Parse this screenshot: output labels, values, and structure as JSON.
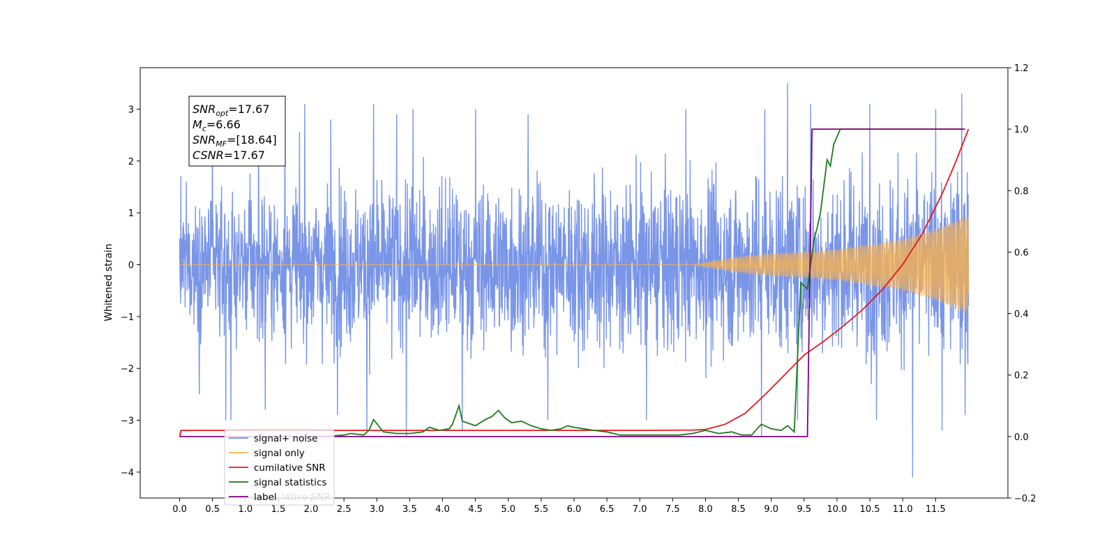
{
  "chart_data": {
    "type": "line",
    "ylabel_left": "Whitened strain",
    "xlim": [
      -0.6,
      12.6
    ],
    "ylim_left": [
      -4.5,
      3.8
    ],
    "ylim_right": [
      -0.2,
      1.2
    ],
    "x_ticks": [
      0.0,
      0.5,
      1.0,
      1.5,
      2.0,
      2.5,
      3.0,
      3.5,
      4.0,
      4.5,
      5.0,
      5.5,
      6.0,
      6.5,
      7.0,
      7.5,
      8.0,
      8.5,
      9.0,
      9.5,
      10.0,
      10.5,
      11.0,
      11.5
    ],
    "x_tick_labels": [
      "0.0",
      "0.5",
      "1.0",
      "1.5",
      "2.0",
      "2.5",
      "3.0",
      "3.5",
      "4.0",
      "4.5",
      "5.0",
      "5.5",
      "6.0",
      "6.5",
      "7.0",
      "7.5",
      "8.0",
      "8.5",
      "9.0",
      "9.5",
      "10.0",
      "10.5",
      "11.0",
      "11.5"
    ],
    "y_left_ticks": [
      -4,
      -3,
      -2,
      -1,
      0,
      1,
      2,
      3
    ],
    "y_left_tick_labels": [
      "−4",
      "−3",
      "−2",
      "−1",
      "0",
      "1",
      "2",
      "3"
    ],
    "y_right_ticks": [
      -0.2,
      0.0,
      0.2,
      0.4,
      0.6,
      0.8,
      1.0,
      1.2
    ],
    "y_right_tick_labels": [
      "−0.2",
      "0.0",
      "0.2",
      "0.4",
      "0.6",
      "0.8",
      "1.0",
      "1.2"
    ],
    "annotation": {
      "lines": [
        {
          "sym": "SNR",
          "sub": "opt",
          "value": "=17.67"
        },
        {
          "sym": "M",
          "sub": "c",
          "value": "=6.66"
        },
        {
          "sym": "SNR",
          "sub": "MF",
          "value": "=[18.64]"
        },
        {
          "sym": "CSNR",
          "sub": "",
          "value": "=17.67"
        }
      ]
    },
    "series": [
      {
        "name": "signal+ noise",
        "axis": "left",
        "color": "#6a8ae6",
        "x_range": [
          0,
          12
        ],
        "sampled": true,
        "envelope_max": [
          [
            0,
            2.0
          ],
          [
            2.0,
            2.5
          ],
          [
            6.0,
            2.6
          ],
          [
            9.0,
            2.8
          ],
          [
            12.0,
            2.9
          ]
        ],
        "peaks": [
          [
            0.1,
            1.6
          ],
          [
            0.5,
            2.9
          ],
          [
            1.2,
            2.9
          ],
          [
            1.6,
            3.0
          ],
          [
            1.9,
            3.1
          ],
          [
            2.3,
            2.8
          ],
          [
            2.95,
            3.1
          ],
          [
            3.3,
            2.9
          ],
          [
            3.55,
            3.0
          ],
          [
            4.5,
            3.0
          ],
          [
            5.3,
            2.9
          ],
          [
            7.7,
            3.0
          ],
          [
            8.9,
            3.0
          ],
          [
            9.25,
            3.5
          ],
          [
            9.6,
            3.1
          ],
          [
            10.5,
            3.1
          ],
          [
            11.5,
            3.0
          ],
          [
            11.9,
            3.3
          ]
        ],
        "troughs": [
          [
            0.3,
            -2.5
          ],
          [
            0.7,
            -3.0
          ],
          [
            0.78,
            -3.0
          ],
          [
            1.3,
            -2.8
          ],
          [
            2.4,
            -2.9
          ],
          [
            2.85,
            -3.2
          ],
          [
            3.45,
            -3.3
          ],
          [
            4.3,
            -3.2
          ],
          [
            5.6,
            -3.0
          ],
          [
            7.1,
            -3.0
          ],
          [
            8.85,
            -3.3
          ],
          [
            9.4,
            -3.0
          ],
          [
            10.6,
            -3.0
          ],
          [
            11.15,
            -4.1
          ],
          [
            11.6,
            -3.2
          ],
          [
            11.95,
            -2.9
          ]
        ]
      },
      {
        "name": "signal only",
        "axis": "left",
        "color": "#ffb347",
        "x_range": [
          0,
          12
        ],
        "sampled": true,
        "amplitude_envelope": [
          [
            0,
            0.0
          ],
          [
            7.8,
            0.0
          ],
          [
            8.5,
            0.15
          ],
          [
            9.0,
            0.22
          ],
          [
            9.5,
            0.25
          ],
          [
            10.0,
            0.3
          ],
          [
            10.5,
            0.4
          ],
          [
            11.0,
            0.5
          ],
          [
            11.5,
            0.7
          ],
          [
            12.0,
            0.95
          ]
        ]
      },
      {
        "name": "cumilative SNR",
        "axis": "right",
        "color": "#e8151a",
        "x": [
          0.0,
          0.02,
          1.0,
          3.0,
          5.0,
          7.0,
          7.8,
          8.0,
          8.3,
          8.6,
          8.9,
          9.2,
          9.5,
          9.8,
          10.1,
          10.4,
          10.7,
          11.0,
          11.3,
          11.6,
          11.8,
          12.0
        ],
        "y": [
          0.0,
          0.02,
          0.02,
          0.02,
          0.02,
          0.02,
          0.021,
          0.023,
          0.04,
          0.075,
          0.135,
          0.2,
          0.265,
          0.31,
          0.36,
          0.415,
          0.48,
          0.56,
          0.66,
          0.79,
          0.89,
          1.0
        ]
      },
      {
        "name": "signal statistics",
        "axis": "right",
        "color": "#1a7a1a",
        "x": [
          2.2,
          2.5,
          2.6,
          2.8,
          2.88,
          2.95,
          3.1,
          3.3,
          3.5,
          3.7,
          3.8,
          3.95,
          4.1,
          4.15,
          4.25,
          4.3,
          4.5,
          4.65,
          4.75,
          4.85,
          4.95,
          5.05,
          5.2,
          5.35,
          5.5,
          5.65,
          5.8,
          5.9,
          6.0,
          6.15,
          6.3,
          6.5,
          6.7,
          7.0,
          7.3,
          7.6,
          7.8,
          8.0,
          8.2,
          8.4,
          8.55,
          8.7,
          8.85,
          9.0,
          9.15,
          9.25,
          9.35,
          9.45,
          9.55,
          9.65,
          9.7,
          9.75,
          9.85,
          9.9,
          9.95,
          10.05,
          10.15,
          10.3,
          10.5,
          11.0,
          11.5,
          11.9
        ],
        "y": [
          0.0,
          0.005,
          0.01,
          0.005,
          0.02,
          0.055,
          0.015,
          0.01,
          0.01,
          0.015,
          0.03,
          0.02,
          0.025,
          0.04,
          0.1,
          0.05,
          0.035,
          0.055,
          0.065,
          0.085,
          0.06,
          0.045,
          0.05,
          0.035,
          0.025,
          0.02,
          0.025,
          0.035,
          0.03,
          0.025,
          0.02,
          0.015,
          0.005,
          0.005,
          0.005,
          0.005,
          0.01,
          0.02,
          0.01,
          0.015,
          0.005,
          0.005,
          0.04,
          0.025,
          0.02,
          0.035,
          0.015,
          0.5,
          0.48,
          0.64,
          0.68,
          0.73,
          0.9,
          0.88,
          0.95,
          1.0,
          1.0,
          1.0,
          1.0,
          1.0,
          1.0,
          1.0
        ]
      },
      {
        "name": "label",
        "axis": "right",
        "color": "#800080",
        "x": [
          0.0,
          9.55,
          9.62,
          11.95
        ],
        "y": [
          0.0,
          0.0,
          1.0,
          1.0
        ]
      }
    ],
    "legend": {
      "position": "lower-left",
      "entries": [
        "signal+ noise",
        "signal only",
        "cumilative SNR",
        "signal statistics",
        "label"
      ],
      "overlap_text": "lative SNR"
    },
    "grid": false
  }
}
